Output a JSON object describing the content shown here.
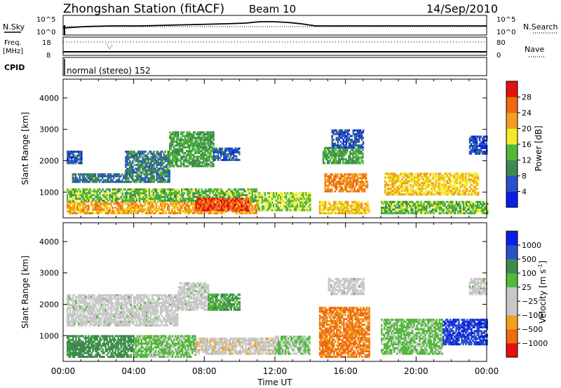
{
  "header": {
    "station": "Zhongshan Station (fitACF)",
    "beam": "Beam 10",
    "date": "14/Sep/2010"
  },
  "top_panels": {
    "nsky_label": "N.Sky",
    "nsearch_label": "N.Search",
    "freq_label_1": "Freq.",
    "freq_label_2": "[MHz]",
    "nave_label": "Nave",
    "cpid_label": "CPID",
    "cpid_value": "normal (stereo) 152",
    "nsky_ticks": [
      "10^5",
      "10^0"
    ],
    "nsearch_ticks": [
      "10^5",
      "10^0"
    ],
    "freq_ticks": [
      "18",
      "8"
    ],
    "nave_ticks": [
      "80",
      "0"
    ]
  },
  "colors": {
    "power_scale": [
      "#0a1ee6",
      "#2a52c8",
      "#3e8a4e",
      "#52b83a",
      "#f0ec2a",
      "#f0a020",
      "#f06a10",
      "#e61010"
    ],
    "velocity_scale": [
      "#e61010",
      "#f06a10",
      "#f0a020",
      "#c8c8c8",
      "#c8c8c8",
      "#52b83a",
      "#3e8a4e",
      "#2a52c8",
      "#0a1ee6"
    ]
  },
  "chart_data": [
    {
      "type": "heatmap",
      "title": "",
      "xlabel": "Time UT",
      "ylabel": "Slant Range [km]",
      "x_ticks": [
        "00:00",
        "04:00",
        "08:00",
        "12:00",
        "16:00",
        "20:00",
        "00:00"
      ],
      "xlim_hours": [
        0,
        24
      ],
      "y_ticks": [
        1000,
        2000,
        3000,
        4000
      ],
      "ylim": [
        180,
        4600
      ],
      "colorbar_label": "Power [dB]",
      "colorbar_ticks": [
        4,
        8,
        12,
        16,
        20,
        24,
        28
      ],
      "colorbar_range": [
        0,
        32
      ],
      "bands": [
        {
          "t0": 0.2,
          "t1": 11.0,
          "r0": 300,
          "r1": 700,
          "v": 22
        },
        {
          "t0": 0.2,
          "t1": 11.0,
          "r0": 700,
          "r1": 1100,
          "v": 14
        },
        {
          "t0": 7.5,
          "t1": 10.5,
          "r0": 400,
          "r1": 800,
          "v": 28
        },
        {
          "t0": 0.5,
          "t1": 3.5,
          "r0": 1300,
          "r1": 1600,
          "v": 8
        },
        {
          "t0": 0.2,
          "t1": 1.0,
          "r0": 1900,
          "r1": 2300,
          "v": 6
        },
        {
          "t0": 3.5,
          "t1": 6.0,
          "r0": 1300,
          "r1": 2300,
          "v": 9
        },
        {
          "t0": 6.0,
          "t1": 8.5,
          "r0": 1800,
          "r1": 2900,
          "v": 12
        },
        {
          "t0": 8.5,
          "t1": 10.0,
          "r0": 2000,
          "r1": 2400,
          "v": 6
        },
        {
          "t0": 11.0,
          "t1": 14.0,
          "r0": 400,
          "r1": 1000,
          "v": 16
        },
        {
          "t0": 14.5,
          "t1": 17.3,
          "r0": 300,
          "r1": 700,
          "v": 20
        },
        {
          "t0": 14.8,
          "t1": 17.2,
          "r0": 1000,
          "r1": 1600,
          "v": 24
        },
        {
          "t0": 14.7,
          "t1": 17.0,
          "r0": 1900,
          "r1": 2400,
          "v": 12
        },
        {
          "t0": 15.2,
          "t1": 17.0,
          "r0": 2400,
          "r1": 3000,
          "v": 6
        },
        {
          "t0": 18.0,
          "t1": 24.0,
          "r0": 300,
          "r1": 700,
          "v": 14
        },
        {
          "t0": 18.2,
          "t1": 23.5,
          "r0": 900,
          "r1": 1600,
          "v": 20
        },
        {
          "t0": 23.0,
          "t1": 24.0,
          "r0": 2200,
          "r1": 2800,
          "v": 5
        }
      ]
    },
    {
      "type": "heatmap",
      "title": "",
      "xlabel": "Time UT",
      "ylabel": "Slant Range [km]",
      "x_ticks": [
        "00:00",
        "04:00",
        "08:00",
        "12:00",
        "16:00",
        "20:00",
        "00:00"
      ],
      "xlim_hours": [
        0,
        24
      ],
      "y_ticks": [
        1000,
        2000,
        3000,
        4000
      ],
      "ylim": [
        180,
        4600
      ],
      "colorbar_label": "Velocity [m s^-1]",
      "colorbar_ticks": [
        "1000",
        "500",
        "100",
        "25",
        "−25",
        "−100",
        "−500",
        "−1000"
      ],
      "colorbar_range": [
        -1200,
        1200
      ],
      "bands": [
        {
          "t0": 0.2,
          "t1": 4.0,
          "r0": 300,
          "r1": 1000,
          "v": 500
        },
        {
          "t0": 4.0,
          "t1": 7.5,
          "r0": 300,
          "r1": 1000,
          "v": 200
        },
        {
          "t0": 7.5,
          "t1": 12.0,
          "r0": 400,
          "r1": 900,
          "v": -300
        },
        {
          "t0": 0.2,
          "t1": 6.5,
          "r0": 1300,
          "r1": 2300,
          "v": 0
        },
        {
          "t0": 6.5,
          "t1": 8.2,
          "r0": 1800,
          "r1": 2700,
          "v": 0
        },
        {
          "t0": 8.2,
          "t1": 10.0,
          "r0": 1800,
          "r1": 2300,
          "v": 400
        },
        {
          "t0": 12.0,
          "t1": 14.0,
          "r0": 400,
          "r1": 1000,
          "v": 150
        },
        {
          "t0": 14.5,
          "t1": 17.3,
          "r0": 300,
          "r1": 1900,
          "v": -700
        },
        {
          "t0": 15.0,
          "t1": 17.0,
          "r0": 2300,
          "r1": 2800,
          "v": 0
        },
        {
          "t0": 18.0,
          "t1": 21.5,
          "r0": 400,
          "r1": 1500,
          "v": 200
        },
        {
          "t0": 21.5,
          "t1": 24.0,
          "r0": 700,
          "r1": 1500,
          "v": 900
        },
        {
          "t0": 23.0,
          "t1": 24.0,
          "r0": 2300,
          "r1": 2800,
          "v": 0
        }
      ]
    }
  ]
}
